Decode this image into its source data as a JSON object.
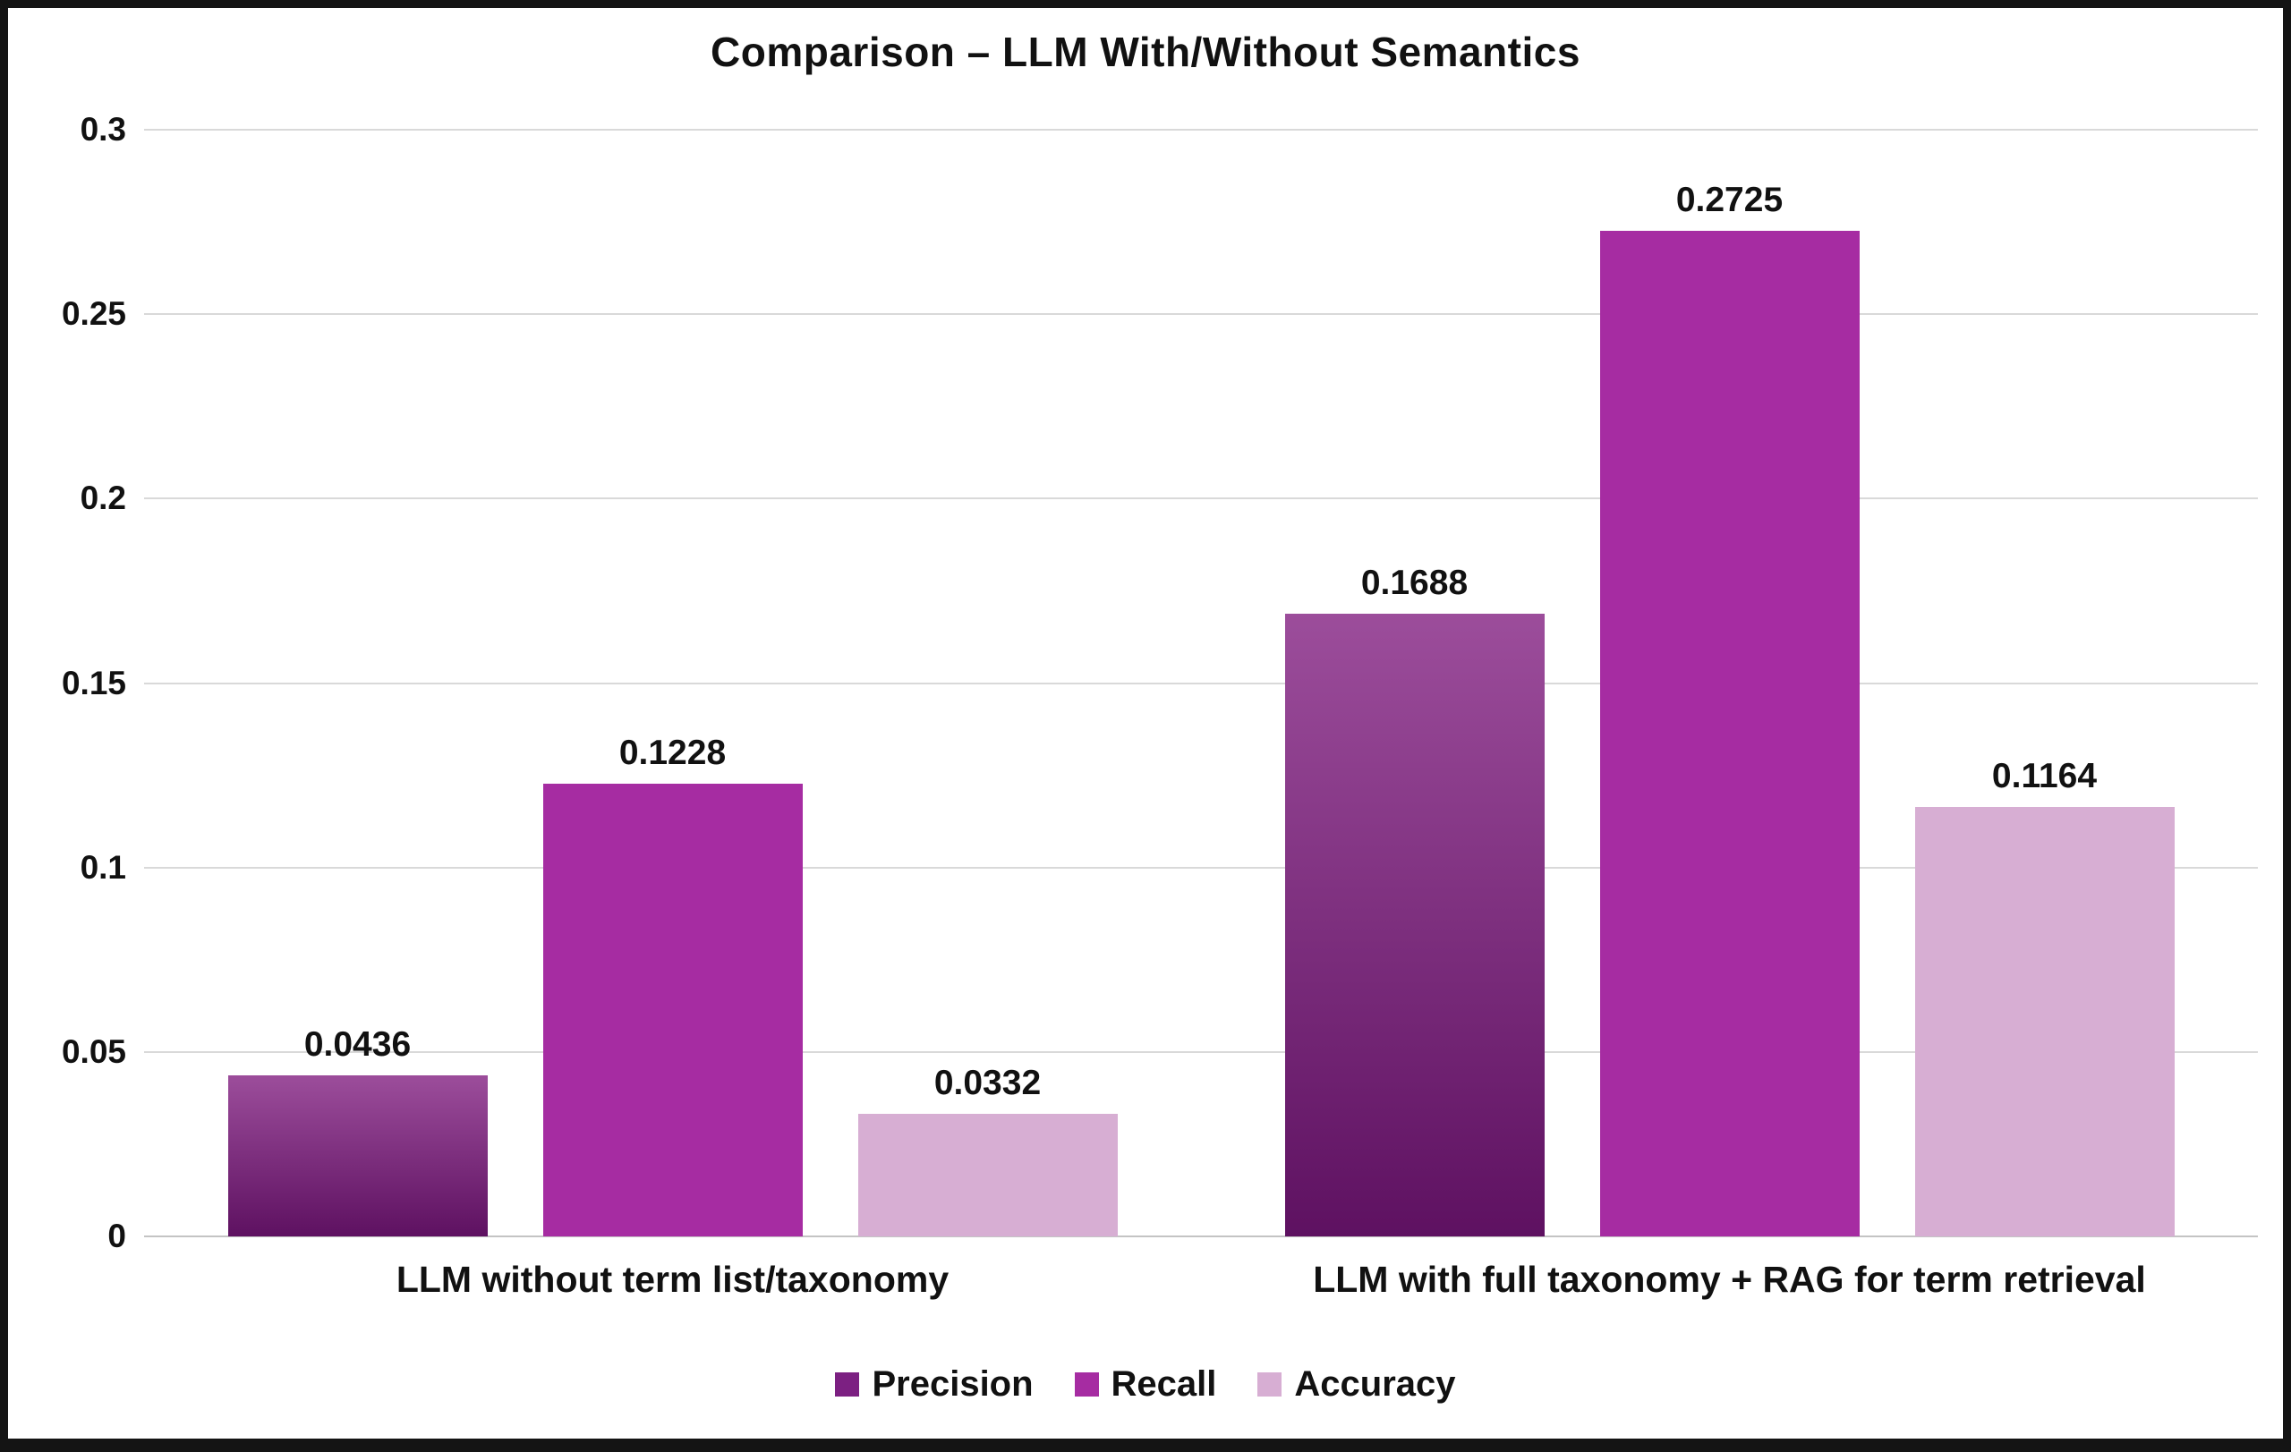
{
  "chart_data": {
    "type": "bar",
    "title": "Comparison – LLM With/Without Semantics",
    "categories": [
      "LLM without term list/taxonomy",
      "LLM with full taxonomy + RAG for term retrieval"
    ],
    "series": [
      {
        "name": "Precision",
        "values": [
          0.0436,
          0.1688
        ],
        "labels": [
          "0.0436",
          "0.1688"
        ],
        "color": "#7c2082",
        "gradient_top": "#9c4d9b",
        "gradient_bottom": "#5e1161"
      },
      {
        "name": "Recall",
        "values": [
          0.1228,
          0.2725
        ],
        "labels": [
          "0.1228",
          "0.2725"
        ],
        "color": "#a62ca2"
      },
      {
        "name": "Accuracy",
        "values": [
          0.0332,
          0.1164
        ],
        "labels": [
          "0.0332",
          "0.1164"
        ],
        "color": "#d7aed3"
      }
    ],
    "ylim": [
      0,
      0.3
    ],
    "y_ticks": [
      0.3,
      0.25,
      0.2,
      0.15,
      0.1,
      0.05,
      0
    ],
    "y_tick_labels": [
      "0.3",
      "0.25",
      "0.2",
      "0.15",
      "0.1",
      "0.05",
      "0"
    ],
    "grid": true,
    "gridline_color": "#d9d9d9",
    "legend_position": "bottom",
    "legend": [
      "Precision",
      "Recall",
      "Accuracy"
    ]
  }
}
